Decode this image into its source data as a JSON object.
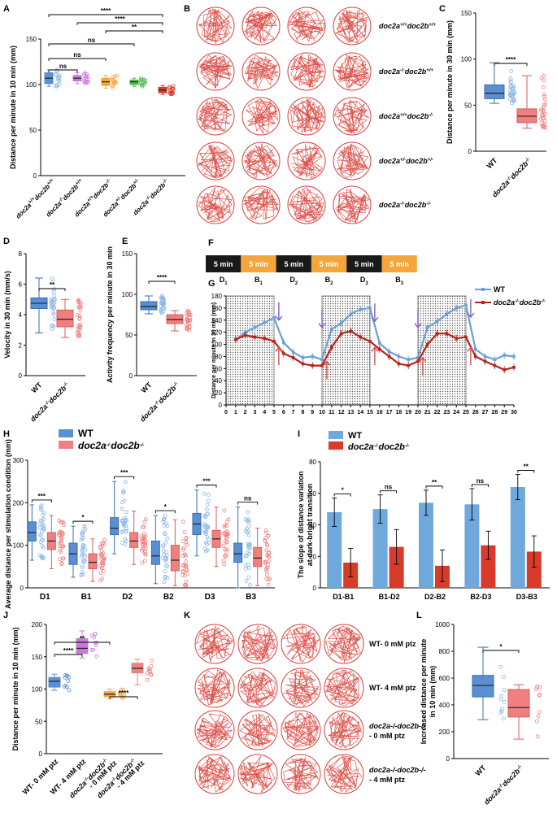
{
  "panel_labels": [
    "A",
    "B",
    "C",
    "D",
    "E",
    "F",
    "G",
    "H",
    "I",
    "J",
    "K",
    "L"
  ],
  "colors": {
    "blue": "#5b8fd4",
    "blue_light": "#8db6e6",
    "pink": "#f08080",
    "red": "#d93b2b",
    "orange": "#f4a63a",
    "purple": "#c77bd6",
    "green": "#4dbb4a",
    "dark_red": "#b5241b",
    "dark_blue": "#6c9fd6",
    "arrow_purple": "#7b64c8",
    "arrow_red": "#d9534f",
    "black": "#1a1a1a"
  },
  "panelB": {
    "rows": [
      [
        "doc2a",
        "+/+",
        "doc2b",
        "+/+"
      ],
      [
        "doc2a",
        "-/-",
        "doc2b",
        "+/+"
      ],
      [
        "doc2a",
        "+/+",
        "doc2b",
        "-/-"
      ],
      [
        "doc2a",
        "+/-",
        "doc2b",
        "+/-"
      ],
      [
        "doc2a",
        "-/-",
        "doc2b",
        "-/-"
      ]
    ]
  },
  "panelK": {
    "rows": [
      [
        "WT- 0 mM ptz"
      ],
      [
        "WT- 4 mM ptz"
      ],
      [
        "doc2a-/-doc2b-/-",
        "- 0 mM ptz"
      ],
      [
        "doc2a-/-doc2b-/-",
        "- 4 mM ptz"
      ]
    ]
  },
  "panelF": {
    "blocks": [
      "5 min",
      "5 min",
      "5 min",
      "5 min",
      "5 min",
      "5 min"
    ],
    "labels": [
      [
        "D",
        "1"
      ],
      [
        "B",
        "1"
      ],
      [
        "D",
        "2"
      ],
      [
        "B",
        "2"
      ],
      [
        "D",
        "3"
      ],
      [
        "B",
        "3"
      ]
    ]
  },
  "chart_data": [
    {
      "panel": "A",
      "type": "box",
      "ylabel": "Distance per minute in 10 min (mm)",
      "ylim": [
        0,
        150
      ],
      "yticks": [
        0,
        50,
        100,
        150
      ],
      "categories": [
        [
          "doc2a",
          "+/+",
          "doc2b",
          "+/+"
        ],
        [
          "doc2a",
          "-/-",
          "doc2b",
          "+/+"
        ],
        [
          "doc2a",
          "+/+",
          "doc2b",
          "-/-"
        ],
        [
          "doc2a",
          "+/-",
          "doc2b",
          "+/-"
        ],
        [
          "doc2a",
          "-/-",
          "doc2b",
          "-/-"
        ]
      ],
      "boxes": [
        {
          "min": 98,
          "q1": 101,
          "median": 107,
          "q3": 113,
          "max": 116
        },
        {
          "min": 101,
          "q1": 104,
          "median": 107,
          "q3": 110,
          "max": 113
        },
        {
          "min": 96,
          "q1": 99,
          "median": 103,
          "q3": 107,
          "max": 110
        },
        {
          "min": 98,
          "q1": 100,
          "median": 103,
          "q3": 105,
          "max": 107
        },
        {
          "min": 89,
          "q1": 91,
          "median": 94,
          "q3": 97,
          "max": 99
        }
      ],
      "significance": [
        {
          "from": 0,
          "to": 4,
          "label": "****"
        },
        {
          "from": 1,
          "to": 4,
          "label": "****"
        },
        {
          "from": 2,
          "to": 4,
          "label": "**"
        },
        {
          "from": 0,
          "to": 3,
          "label": "ns"
        },
        {
          "from": 0,
          "to": 2,
          "label": "ns"
        },
        {
          "from": 0,
          "to": 1,
          "label": "ns"
        }
      ]
    },
    {
      "panel": "C",
      "type": "box",
      "ylabel": "Distance per minute in 30 min (mm)",
      "ylim": [
        0,
        150
      ],
      "yticks": [
        0,
        50,
        100,
        150
      ],
      "categories": [
        "WT",
        [
          "doc2a",
          "-/-",
          "doc2b",
          "-/-"
        ]
      ],
      "boxes": [
        {
          "min": 52,
          "q1": 57,
          "median": 63,
          "q3": 72,
          "max": 96
        },
        {
          "min": 25,
          "q1": 31,
          "median": 38,
          "q3": 46,
          "max": 82
        }
      ],
      "significance": [
        {
          "from": 0,
          "to": 1,
          "label": "****"
        }
      ]
    },
    {
      "panel": "D",
      "type": "box",
      "ylabel": "Velocity in 30 min (mm/s)",
      "ylim": [
        0,
        8
      ],
      "yticks": [
        0,
        2,
        4,
        6,
        8
      ],
      "categories": [
        "WT",
        [
          "doc2a",
          "-/-",
          "doc2b",
          "-/-"
        ]
      ],
      "boxes": [
        {
          "min": 2.8,
          "q1": 4.4,
          "median": 4.75,
          "q3": 5.1,
          "max": 6.4
        },
        {
          "min": 2.5,
          "q1": 3.2,
          "median": 3.7,
          "q3": 4.3,
          "max": 5.0
        }
      ],
      "significance": [
        {
          "from": 0,
          "to": 1,
          "label": "**"
        }
      ]
    },
    {
      "panel": "E",
      "type": "box",
      "ylabel": "Activity frequency per minute in 30 min",
      "ylim": [
        0,
        150
      ],
      "yticks": [
        0,
        50,
        100,
        150
      ],
      "categories": [
        "WT",
        [
          "doc2a",
          "-/-",
          "doc2b",
          "-/-"
        ]
      ],
      "boxes": [
        {
          "min": 76,
          "q1": 81,
          "median": 85,
          "q3": 91,
          "max": 98
        },
        {
          "min": 55,
          "q1": 64,
          "median": 69,
          "q3": 75,
          "max": 80
        }
      ],
      "significance": [
        {
          "from": 0,
          "to": 1,
          "label": "****"
        }
      ]
    },
    {
      "panel": "G",
      "type": "line",
      "ylabel": "Distance per minute in 30 min (mm)",
      "xlim": [
        0,
        30
      ],
      "ylim": [
        0,
        180
      ],
      "xticks": [
        0,
        1,
        2,
        3,
        4,
        5,
        6,
        7,
        8,
        9,
        10,
        11,
        12,
        13,
        14,
        15,
        16,
        17,
        18,
        19,
        20,
        21,
        22,
        23,
        24,
        25,
        26,
        27,
        28,
        29,
        30
      ],
      "yticks": [
        0,
        20,
        40,
        60,
        80,
        100,
        120,
        140,
        160,
        180
      ],
      "dark_periods": [
        [
          0,
          5
        ],
        [
          10,
          15
        ],
        [
          20,
          25
        ]
      ],
      "series": [
        {
          "name": "WT",
          "x": [
            1,
            2,
            3,
            4,
            5,
            6,
            7,
            8,
            9,
            10,
            11,
            12,
            13,
            14,
            15,
            16,
            17,
            18,
            19,
            20,
            21,
            22,
            23,
            24,
            25,
            26,
            27,
            28,
            29,
            30
          ],
          "y": [
            108,
            120,
            128,
            136,
            144,
            103,
            87,
            78,
            80,
            75,
            125,
            135,
            150,
            158,
            160,
            102,
            88,
            80,
            75,
            78,
            128,
            138,
            150,
            160,
            165,
            92,
            80,
            75,
            82,
            80
          ]
        },
        {
          "name": [
            "doc2a",
            "-/-",
            "doc2b",
            "-/-"
          ],
          "x": [
            1,
            2,
            3,
            4,
            5,
            6,
            7,
            8,
            9,
            10,
            11,
            12,
            13,
            14,
            15,
            16,
            17,
            18,
            19,
            20,
            21,
            22,
            23,
            24,
            25,
            26,
            27,
            28,
            29,
            30
          ],
          "y": [
            108,
            115,
            112,
            110,
            105,
            85,
            78,
            68,
            65,
            65,
            95,
            118,
            122,
            112,
            105,
            92,
            80,
            68,
            65,
            72,
            100,
            118,
            118,
            110,
            112,
            80,
            72,
            65,
            58,
            62
          ]
        }
      ]
    },
    {
      "panel": "H",
      "type": "box",
      "ylabel": "Average distance per stimulation condition (mm)",
      "ylim": [
        0,
        300
      ],
      "yticks": [
        0,
        100,
        200,
        300
      ],
      "categories": [
        [
          "D",
          "1"
        ],
        [
          "B",
          "1"
        ],
        [
          "D",
          "2"
        ],
        [
          "B",
          "2"
        ],
        [
          "D",
          "3"
        ],
        [
          "B",
          "3"
        ]
      ],
      "legend": [
        "WT",
        [
          "doc2a",
          "-/-",
          "doc2b",
          "-/-"
        ]
      ],
      "boxes_wt": [
        {
          "min": 65,
          "q1": 110,
          "median": 130,
          "q3": 155,
          "max": 195
        },
        {
          "min": 25,
          "q1": 55,
          "median": 80,
          "q3": 105,
          "max": 145
        },
        {
          "min": 80,
          "q1": 125,
          "median": 140,
          "q3": 165,
          "max": 250
        },
        {
          "min": 10,
          "q1": 55,
          "median": 75,
          "q3": 110,
          "max": 170
        },
        {
          "min": 75,
          "q1": 125,
          "median": 150,
          "q3": 175,
          "max": 230
        },
        {
          "min": 0,
          "q1": 60,
          "median": 80,
          "q3": 105,
          "max": 190
        }
      ],
      "boxes_mut": [
        {
          "min": 45,
          "q1": 90,
          "median": 110,
          "q3": 130,
          "max": 170
        },
        {
          "min": 15,
          "q1": 45,
          "median": 60,
          "q3": 80,
          "max": 115
        },
        {
          "min": 55,
          "q1": 95,
          "median": 110,
          "q3": 130,
          "max": 180
        },
        {
          "min": 5,
          "q1": 40,
          "median": 65,
          "q3": 100,
          "max": 160
        },
        {
          "min": 50,
          "q1": 95,
          "median": 115,
          "q3": 135,
          "max": 190
        },
        {
          "min": 5,
          "q1": 50,
          "median": 70,
          "q3": 95,
          "max": 140
        }
      ],
      "significance": [
        "***",
        "*",
        "***",
        "*",
        "***",
        "ns"
      ]
    },
    {
      "panel": "I",
      "type": "bar",
      "ylabel": [
        "The slope of distance  variation",
        "at dark-bright transition"
      ],
      "ylim": [
        0,
        80
      ],
      "yticks": [
        0,
        20,
        40,
        60,
        80
      ],
      "categories": [
        "D1-B1",
        "B1-D2",
        "D2-B2",
        "B2-D3",
        "D3-B3"
      ],
      "legend": [
        "WT",
        [
          "doc2a",
          "-/-",
          "doc2b",
          "-/-"
        ]
      ],
      "series": [
        {
          "name": "WT",
          "values": [
            48,
            50,
            54,
            53,
            64
          ],
          "err": [
            9,
            9,
            8,
            10,
            8
          ]
        },
        {
          "name": [
            "doc2a",
            "-/-",
            "doc2b",
            "-/-"
          ],
          "values": [
            16,
            26,
            14,
            27,
            23
          ],
          "err": [
            9,
            11,
            10,
            9,
            10
          ]
        }
      ],
      "significance": [
        "*",
        "ns",
        "**",
        "ns",
        "**"
      ]
    },
    {
      "panel": "J",
      "type": "box",
      "ylabel": "Distance per minute in 10 min (mm)",
      "ylim": [
        0,
        200
      ],
      "yticks": [
        0,
        50,
        100,
        150,
        200
      ],
      "categories": [
        "WT- 0 mM ptz",
        "WT- 4 mM ptz",
        [
          "doc2a",
          "-/-",
          "doc2b",
          "-/-",
          " - 0 mM ptz"
        ],
        [
          "doc2a",
          "-/-",
          "doc2b",
          "-/-",
          " - 4 mM ptz"
        ]
      ],
      "boxes": [
        {
          "min": 98,
          "q1": 103,
          "median": 112,
          "q3": 118,
          "max": 123
        },
        {
          "min": 148,
          "q1": 155,
          "median": 163,
          "q3": 178,
          "max": 190
        },
        {
          "min": 85,
          "q1": 88,
          "median": 92,
          "q3": 96,
          "max": 100
        },
        {
          "min": 107,
          "q1": 125,
          "median": 132,
          "q3": 140,
          "max": 146
        }
      ],
      "significance": [
        {
          "from": 0,
          "to": 2,
          "label": "**"
        },
        {
          "from": 0,
          "to": 1,
          "label": "****"
        },
        {
          "from": 2,
          "to": 3,
          "label": "****"
        }
      ]
    },
    {
      "panel": "L",
      "type": "box",
      "ylabel": [
        "Increased distance per minute",
        "in 10 min (mm)"
      ],
      "ylim": [
        0,
        1000
      ],
      "yticks": [
        0,
        200,
        400,
        600,
        800,
        1000
      ],
      "categories": [
        "WT",
        [
          "doc2a",
          "-/-",
          "doc2b",
          "-/-"
        ]
      ],
      "boxes": [
        {
          "min": 290,
          "q1": 460,
          "median": 545,
          "q3": 620,
          "max": 830
        },
        {
          "min": 145,
          "q1": 310,
          "median": 380,
          "q3": 515,
          "max": 550
        }
      ],
      "significance": [
        {
          "from": 0,
          "to": 1,
          "label": "*"
        }
      ]
    }
  ]
}
